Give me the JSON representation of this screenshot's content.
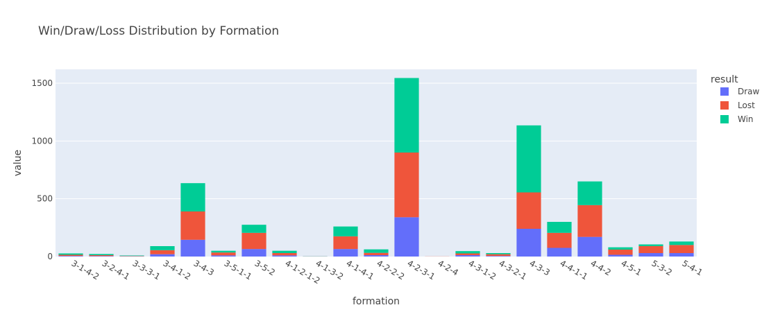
{
  "chart_data": {
    "type": "bar",
    "stacked": true,
    "title": "Win/Draw/Loss Distribution by Formation",
    "xlabel": "formation",
    "ylabel": "value",
    "ylim": [
      0,
      1620
    ],
    "yticks": [
      0,
      500,
      1000,
      1500
    ],
    "grid": true,
    "legend": {
      "title": "result",
      "placement": "right"
    },
    "categories": [
      "3-1-4-2",
      "3-2-4-1",
      "3-3-3-1",
      "3-4-1-2",
      "3-4-3",
      "3-5-1-1",
      "3-5-2",
      "4-1-2-1-2",
      "4-1-3-2",
      "4-1-4-1",
      "4-2-2-2",
      "4-2-3-1",
      "4-2-4",
      "4-3-1-2",
      "4-3-2-1",
      "4-3-3",
      "4-4-1-1",
      "4-4-2",
      "4-5-1",
      "5-3-2",
      "5-4-1"
    ],
    "series": [
      {
        "name": "Draw",
        "color": "#636efa",
        "values": [
          5,
          4,
          2,
          20,
          145,
          10,
          65,
          10,
          1,
          65,
          12,
          340,
          0,
          12,
          5,
          240,
          75,
          170,
          15,
          30,
          30
        ]
      },
      {
        "name": "Lost",
        "color": "#ef553b",
        "values": [
          10,
          8,
          3,
          35,
          245,
          25,
          140,
          20,
          1,
          110,
          20,
          560,
          1,
          15,
          15,
          315,
          130,
          275,
          45,
          60,
          70
        ]
      },
      {
        "name": "Win",
        "color": "#00cc96",
        "values": [
          12,
          10,
          4,
          35,
          245,
          15,
          70,
          20,
          1,
          85,
          30,
          645,
          0,
          20,
          10,
          580,
          95,
          205,
          20,
          15,
          30
        ]
      }
    ]
  }
}
